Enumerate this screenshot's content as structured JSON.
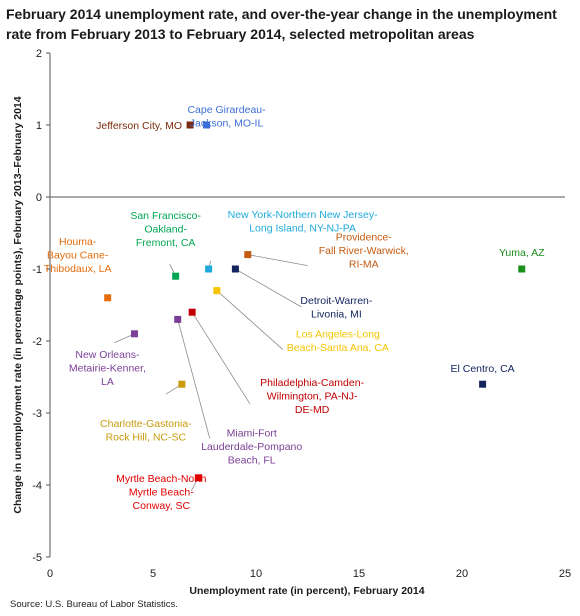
{
  "chart_data": {
    "type": "scatter",
    "title": "February 2014 unemployment rate, and over-the-year change in the unemployment rate from February 2013 to February 2014, selected metropolitan areas",
    "xlabel": "Unemployment rate (in percent), February 2014",
    "ylabel": "Change in unemployment rate (in percentage points), February 2013–February 2014",
    "xlim": [
      0,
      25
    ],
    "ylim": [
      -5,
      2
    ],
    "x_ticks": [
      "0",
      "5",
      "10",
      "15",
      "20",
      "25"
    ],
    "y_ticks": [
      "2",
      "1",
      "0",
      "-1",
      "-2",
      "-3",
      "-4",
      "-5"
    ],
    "grid": false,
    "legend": "none",
    "source": "Source: U.S. Bureau of Labor Statistics.",
    "points": [
      {
        "label": [
          "Jefferson City, MO"
        ],
        "x": 6.8,
        "y": 1.0,
        "color": "#7b2a0c"
      },
      {
        "label": [
          "Cape Girardeau-",
          "Jackson, MO-IL"
        ],
        "x": 7.6,
        "y": 1.0,
        "color": "#3b6fd6"
      },
      {
        "label": [
          "Houma-",
          "Bayou Cane-",
          "Thibodaux, LA"
        ],
        "x": 2.8,
        "y": -1.4,
        "color": "#e46c0a"
      },
      {
        "label": [
          "San Francisco-",
          "Oakland-",
          "Fremont, CA"
        ],
        "x": 6.1,
        "y": -1.1,
        "color": "#00a651"
      },
      {
        "label": [
          "New York-Northern New Jersey-",
          "Long Island, NY-NJ-PA"
        ],
        "x": 7.7,
        "y": -1.0,
        "color": "#1eaadc"
      },
      {
        "label": [
          "Providence-",
          "Fall River-Warwick,",
          "RI-MA"
        ],
        "x": 9.6,
        "y": -0.8,
        "color": "#c55a11"
      },
      {
        "label": [
          "Detroit-Warren-",
          "Livonia, MI"
        ],
        "x": 9.0,
        "y": -1.0,
        "color": "#12235e"
      },
      {
        "label": [
          "Los Angeles-Long",
          "Beach-Santa Ana, CA"
        ],
        "x": 8.1,
        "y": -1.3,
        "color": "#f5c400"
      },
      {
        "label": [
          "New Orleans-",
          "Metairie-Kenner,",
          "LA"
        ],
        "x": 4.1,
        "y": -1.9,
        "color": "#7b3f96"
      },
      {
        "label": [
          "Miami-Fort",
          "Lauderdale-Pompano",
          "Beach, FL"
        ],
        "x": 6.2,
        "y": -1.7,
        "color": "#7b3f96"
      },
      {
        "label": [
          "Philadelphia-Camden-",
          "Wilmington, PA-NJ-",
          "DE-MD"
        ],
        "x": 6.9,
        "y": -1.6,
        "color": "#c00000"
      },
      {
        "label": [
          "Charlotte-Gastonia-",
          "Rock Hill, NC-SC"
        ],
        "x": 6.4,
        "y": -2.6,
        "color": "#c89a0c"
      },
      {
        "label": [
          "Myrtle Beach-North",
          "Myrtle Beach-",
          "Conway, SC"
        ],
        "x": 7.2,
        "y": -3.9,
        "color": "#e00000"
      },
      {
        "label": [
          "Yuma, AZ"
        ],
        "x": 22.9,
        "y": -1.0,
        "color": "#1b8f1b"
      },
      {
        "label": [
          "El Centro, CA"
        ],
        "x": 21.0,
        "y": -2.6,
        "color": "#12235e"
      }
    ]
  }
}
